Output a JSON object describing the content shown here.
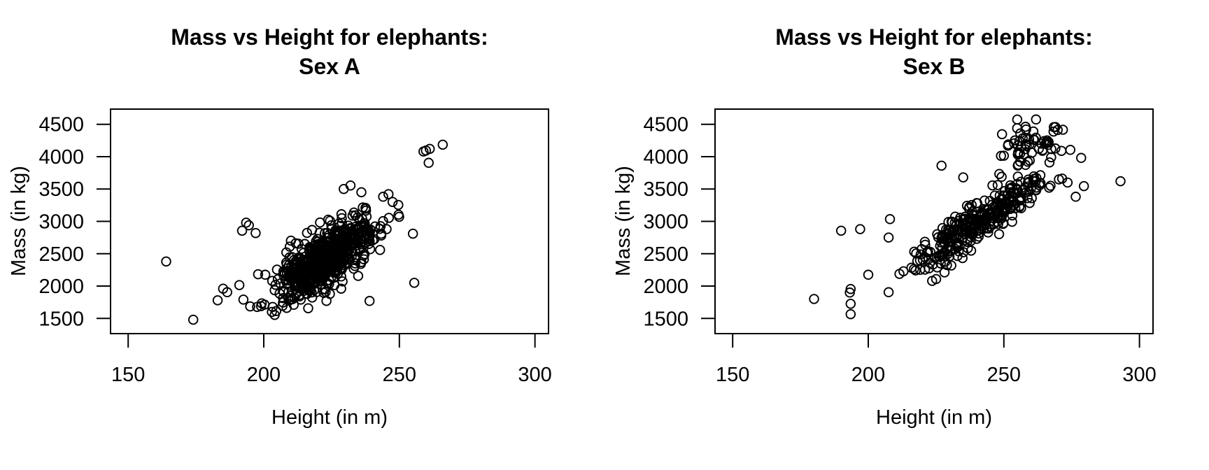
{
  "figure": {
    "background_color": "#ffffff",
    "foreground_color": "#000000",
    "panel_count": 2
  },
  "chart_data": [
    {
      "type": "scatter",
      "title_line1": "Mass vs Height for elephants:",
      "title_line2": "Sex A",
      "xlabel": "Height (in m)",
      "ylabel": "Mass (in kg)",
      "x_ticks": [
        150,
        200,
        250,
        300
      ],
      "y_ticks": [
        1500,
        2000,
        2500,
        3000,
        3500,
        4000,
        4500
      ],
      "xlim": [
        143.5,
        305
      ],
      "ylim": [
        1265,
        4735
      ],
      "grid": false,
      "legend": null,
      "marker": "open-circle",
      "marker_color": "#000000",
      "clusters": [
        {
          "name": "main-cloud",
          "n": 620,
          "mean": [
            222.5,
            2420
          ],
          "sd": [
            8.8,
            310
          ],
          "rho": 0.72,
          "clamp_x": [
            196,
            250.5
          ],
          "clamp_y": [
            1515,
            3560
          ],
          "seed": 7
        }
      ],
      "outlier_points": [
        [
          164,
          2380
        ],
        [
          174,
          1480
        ],
        [
          183,
          1780
        ],
        [
          186.5,
          1905
        ],
        [
          185,
          1960
        ],
        [
          191,
          2015
        ],
        [
          192.5,
          1790
        ],
        [
          195,
          1685
        ],
        [
          199,
          1690
        ],
        [
          203,
          1600
        ],
        [
          193.5,
          2980
        ],
        [
          192,
          2855
        ],
        [
          197,
          2820
        ],
        [
          194.5,
          2940
        ],
        [
          255,
          2810
        ],
        [
          255.5,
          2050
        ],
        [
          239,
          1770
        ],
        [
          232,
          3555
        ],
        [
          236,
          3450
        ],
        [
          229.5,
          3500
        ],
        [
          246,
          3420
        ],
        [
          244,
          3380
        ],
        [
          247.5,
          3300
        ],
        [
          259.8,
          4095
        ],
        [
          261.2,
          4120
        ],
        [
          266,
          4185
        ],
        [
          260.8,
          3905
        ],
        [
          258.9,
          4080
        ]
      ]
    },
    {
      "type": "scatter",
      "title_line1": "Mass vs Height for elephants:",
      "title_line2": "Sex B",
      "xlabel": "Height (in m)",
      "ylabel": "Mass (in kg)",
      "x_ticks": [
        150,
        200,
        250,
        300
      ],
      "y_ticks": [
        1500,
        2000,
        2500,
        3000,
        3500,
        4000,
        4500
      ],
      "xlim": [
        143.5,
        305
      ],
      "ylim": [
        1265,
        4735
      ],
      "grid": false,
      "legend": null,
      "marker": "open-circle",
      "marker_color": "#000000",
      "clusters": [
        {
          "name": "main-band",
          "n": 310,
          "mean": [
            241,
            3000
          ],
          "sd": [
            14,
            420
          ],
          "rho": 0.9,
          "clamp_x": [
            209.5,
            281
          ],
          "clamp_y": [
            1990,
            3760
          ],
          "seed": 11
        },
        {
          "name": "high-cluster",
          "n": 58,
          "mean": [
            261,
            4250
          ],
          "sd": [
            5.5,
            200
          ],
          "rho": 0.25,
          "clamp_x": [
            248.5,
            272.5
          ],
          "clamp_y": [
            3860,
            4595
          ],
          "seed": 23
        }
      ],
      "outlier_points": [
        [
          180,
          1800
        ],
        [
          193.5,
          1955
        ],
        [
          193.2,
          1900
        ],
        [
          193.5,
          1725
        ],
        [
          193.5,
          1565
        ],
        [
          190,
          2855
        ],
        [
          197,
          2880
        ],
        [
          208,
          3035
        ],
        [
          207.5,
          2750
        ],
        [
          200,
          2175
        ],
        [
          207.5,
          1905
        ],
        [
          227,
          3860
        ],
        [
          235,
          3680
        ],
        [
          250,
          4015
        ],
        [
          258,
          3872
        ],
        [
          262,
          3670
        ],
        [
          266.7,
          3520
        ],
        [
          271.5,
          3660
        ],
        [
          273.5,
          3600
        ],
        [
          276.5,
          3380
        ],
        [
          279.5,
          3545
        ],
        [
          274.5,
          4105
        ],
        [
          278.5,
          3980
        ],
        [
          293,
          3620
        ]
      ]
    }
  ]
}
